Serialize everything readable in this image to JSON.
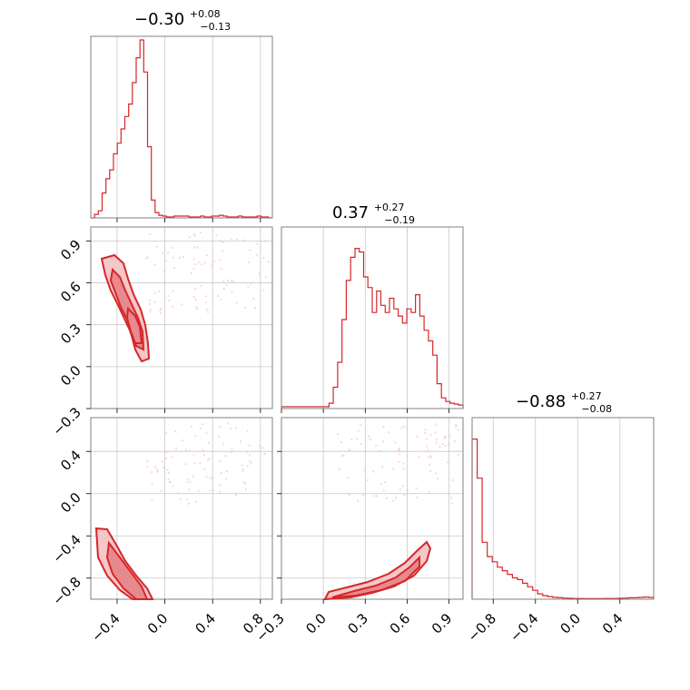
{
  "chart_data": {
    "type": "corner",
    "parameters": [
      {
        "title_main": "−0.30",
        "title_plus": "+0.08",
        "title_minus": "−0.13",
        "range": [
          -0.62,
          0.9
        ],
        "ticks": [
          -0.4,
          0.0,
          0.4,
          0.8
        ],
        "tick_labels": [
          "−0.4",
          "0.0",
          "0.4",
          "0.8"
        ],
        "hist": [
          0,
          0.02,
          0.04,
          0.14,
          0.22,
          0.27,
          0.36,
          0.42,
          0.5,
          0.57,
          0.64,
          0.76,
          0.9,
          1.0,
          0.82,
          0.4,
          0.1,
          0.03,
          0.015,
          0.01,
          0.005,
          0.005,
          0.01,
          0.01,
          0.01,
          0.01,
          0.005,
          0.005,
          0.005,
          0.01,
          0.005,
          0.005,
          0.01,
          0.01,
          0.015,
          0.01,
          0.005,
          0.005,
          0.005,
          0.01,
          0.005,
          0.005,
          0.005,
          0.005,
          0.01,
          0.005,
          0.005,
          0.0
        ]
      },
      {
        "title_main": "0.37",
        "title_plus": "+0.27",
        "title_minus": "−0.19",
        "range": [
          -0.3,
          1.0
        ],
        "ticks": [
          -0.3,
          0.0,
          0.3,
          0.6,
          0.9
        ],
        "tick_labels": [
          "−0.3",
          "0.0",
          "0.3",
          "0.6",
          "0.9"
        ],
        "hist": [
          0.01,
          0.01,
          0.01,
          0.01,
          0.01,
          0.01,
          0.01,
          0.01,
          0.01,
          0.01,
          0.01,
          0.03,
          0.12,
          0.26,
          0.5,
          0.72,
          0.85,
          0.9,
          0.88,
          0.74,
          0.68,
          0.54,
          0.66,
          0.58,
          0.54,
          0.62,
          0.56,
          0.52,
          0.48,
          0.56,
          0.54,
          0.64,
          0.52,
          0.44,
          0.38,
          0.3,
          0.14,
          0.06,
          0.04,
          0.03,
          0.025,
          0.02
        ]
      },
      {
        "title_main": "−0.88",
        "title_plus": "+0.27",
        "title_minus": "−0.08",
        "range": [
          -1.0,
          0.72
        ],
        "ticks": [
          -0.8,
          -0.4,
          0.0,
          0.4
        ],
        "tick_labels": [
          "−0.8",
          "−0.4",
          "0.0",
          "0.4"
        ],
        "hist": [
          0.9,
          0.68,
          0.32,
          0.24,
          0.21,
          0.18,
          0.16,
          0.14,
          0.12,
          0.11,
          0.09,
          0.07,
          0.05,
          0.03,
          0.02,
          0.015,
          0.01,
          0.008,
          0.006,
          0.005,
          0.004,
          0.004,
          0.003,
          0.003,
          0.003,
          0.003,
          0.004,
          0.004,
          0.004,
          0.005,
          0.006,
          0.008,
          0.008,
          0.01,
          0.012,
          0.01
        ]
      }
    ],
    "grid": true,
    "color": "#d62728"
  }
}
